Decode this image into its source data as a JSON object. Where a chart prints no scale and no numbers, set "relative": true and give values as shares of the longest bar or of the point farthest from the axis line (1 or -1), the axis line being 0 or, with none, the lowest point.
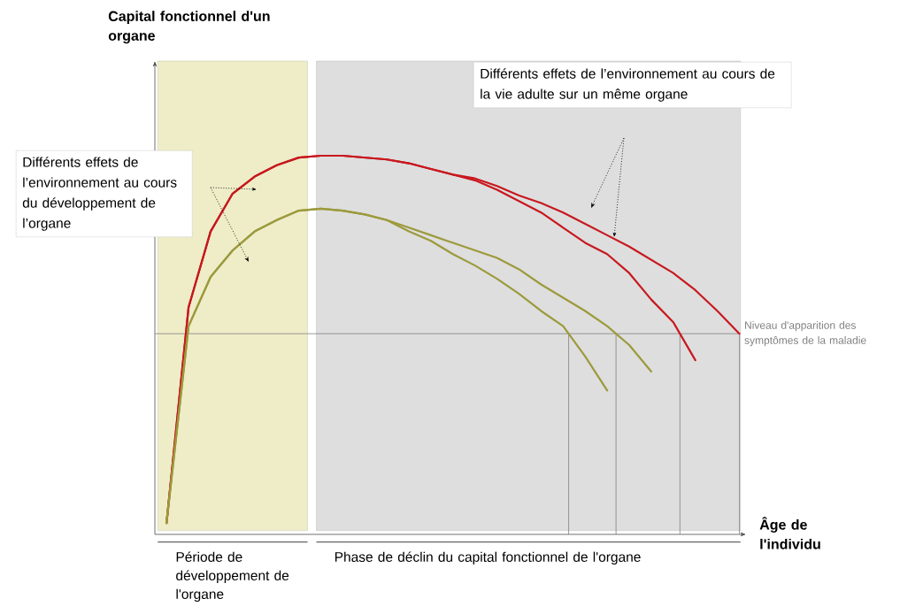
{
  "chart_data": {
    "type": "line",
    "relative": true,
    "tick_labels": false,
    "xlabel": "Âge de l'individu",
    "categories": [
      null,
      null,
      null,
      null,
      null,
      null,
      null,
      null,
      null,
      null,
      null,
      null,
      null,
      null,
      null,
      null,
      null,
      null,
      null,
      null,
      null,
      null,
      null,
      null,
      null,
      null,
      null
    ],
    "series": [
      {
        "color": "#c8181e",
        "values": [
          0.03,
          0.6,
          0.8,
          0.9,
          0.945,
          0.975,
          0.995,
          1.0,
          1.0,
          0.995,
          0.99,
          0.98,
          0.965,
          0.95,
          0.94,
          0.92,
          0.895,
          0.875,
          0.85,
          0.82,
          0.79,
          0.76,
          0.725,
          0.69,
          0.645,
          0.59,
          0.53
        ]
      },
      {
        "color": "#c8181e",
        "values": [
          0.03,
          0.6,
          0.8,
          0.9,
          0.945,
          0.975,
          0.995,
          1.0,
          1.0,
          0.995,
          0.99,
          0.98,
          0.965,
          0.95,
          0.935,
          0.91,
          0.88,
          0.85,
          0.81,
          0.77,
          0.74,
          0.69,
          0.62,
          0.56,
          0.46,
          null,
          null
        ]
      },
      {
        "color": "#9c9a3c",
        "values": [
          0.03,
          0.55,
          0.68,
          0.75,
          0.8,
          0.83,
          0.855,
          0.86,
          0.855,
          0.845,
          0.83,
          0.81,
          0.79,
          0.77,
          0.75,
          0.73,
          0.7,
          0.66,
          0.625,
          0.59,
          0.55,
          0.5,
          0.43,
          null,
          null,
          null,
          null
        ]
      },
      {
        "color": "#9c9a3c",
        "values": [
          0.03,
          0.55,
          0.68,
          0.75,
          0.8,
          0.83,
          0.855,
          0.86,
          0.855,
          0.845,
          0.83,
          0.8,
          0.775,
          0.74,
          0.71,
          0.675,
          0.635,
          0.59,
          0.55,
          0.47,
          0.38,
          null,
          null,
          null,
          null,
          null,
          null
        ]
      }
    ],
    "ref_lines": [
      {
        "axis": "y",
        "value": 0.53,
        "label": "Niveau d'apparition des symptômes de la maladie",
        "color": "#808080"
      }
    ],
    "annotations": [
      "Différents effets de l’environnement au cours du développement de l’organe",
      "Différents effets de l’environnement au cours de la vie adulte sur un même organe",
      "Période de développement de l'organe",
      "Phase de déclin du capital fonctionnel de l'organe",
      "Capital fonctionnel d'un organe"
    ]
  }
}
